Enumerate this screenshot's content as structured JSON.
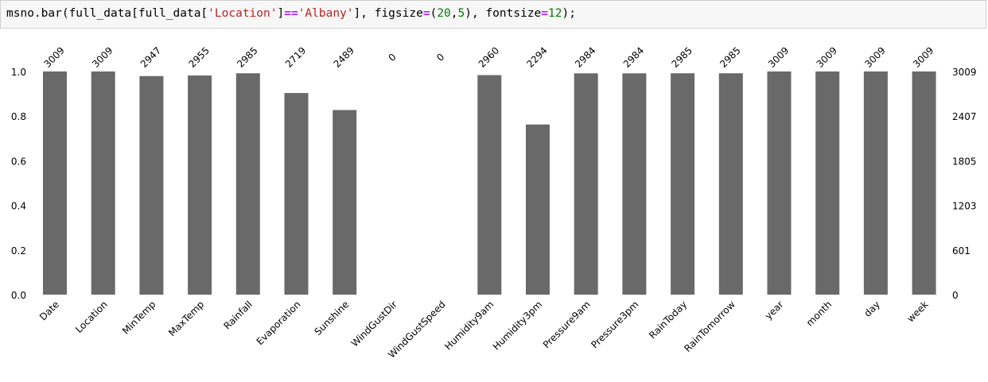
{
  "code_cell": {
    "p1": "msno.bar(full_data[full_data[",
    "s1": "'Location'",
    "p2": "]",
    "op1": "==",
    "s2": "'Albany'",
    "p3": "], figsize",
    "op2": "=",
    "p4": "(",
    "n1": "20",
    "p5": ",",
    "n2": "5",
    "p6": "), fontsize",
    "op3": "=",
    "n3": "12",
    "p7": ");"
  },
  "colors": {
    "bar": "#696969",
    "code_bg": "#f7f7f7",
    "code_border": "#cfcfcf"
  },
  "chart_data": {
    "type": "bar",
    "categories": [
      "Date",
      "Location",
      "MinTemp",
      "MaxTemp",
      "Rainfall",
      "Evaporation",
      "Sunshine",
      "WindGustDir",
      "WindGustSpeed",
      "Humidity9am",
      "Humidity3pm",
      "Pressure9am",
      "Pressure3pm",
      "RainToday",
      "RainTomorrow",
      "year",
      "month",
      "day",
      "week"
    ],
    "values": [
      3009,
      3009,
      2947,
      2955,
      2985,
      2719,
      2489,
      0,
      0,
      2960,
      2294,
      2984,
      2984,
      2985,
      2985,
      3009,
      3009,
      3009,
      3009
    ],
    "value_labels": [
      "3009",
      "3009",
      "2947",
      "2955",
      "2985",
      "2719",
      "2489",
      "0",
      "0",
      "2960",
      "2294",
      "2984",
      "2984",
      "2985",
      "2985",
      "3009",
      "3009",
      "3009",
      "3009"
    ],
    "total": 3009,
    "left_ticks": [
      "0.0",
      "0.2",
      "0.4",
      "0.6",
      "0.8",
      "1.0"
    ],
    "right_ticks": [
      "0",
      "601",
      "1203",
      "1805",
      "2407",
      "3009"
    ],
    "ylim": [
      0,
      1
    ],
    "grid": false
  }
}
